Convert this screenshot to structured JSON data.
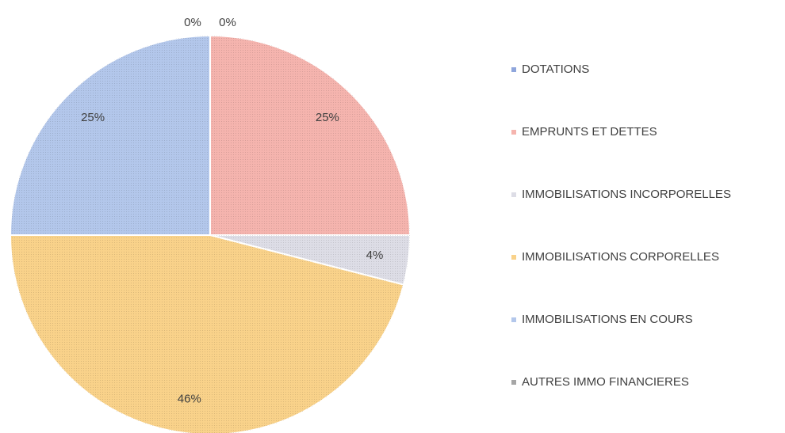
{
  "chart_data": {
    "type": "pie",
    "categories": [
      "DOTATIONS",
      "EMPRUNTS ET DETTES",
      "IMMOBILISATIONS INCORPORELLES",
      "IMMOBILISATIONS CORPORELLES",
      "IMMOBILISATIONS EN COURS",
      "AUTRES IMMO FINANCIERES"
    ],
    "values": [
      0,
      25,
      4,
      46,
      25,
      0
    ],
    "value_labels": [
      "0%",
      "25%",
      "4%",
      "46%",
      "25%",
      "0%"
    ],
    "colors": [
      "#8fa6dc",
      "#f5b4ae",
      "#dddde6",
      "#f9d28a",
      "#b3c7eb",
      "#a6a6a6"
    ],
    "legend": "right"
  }
}
